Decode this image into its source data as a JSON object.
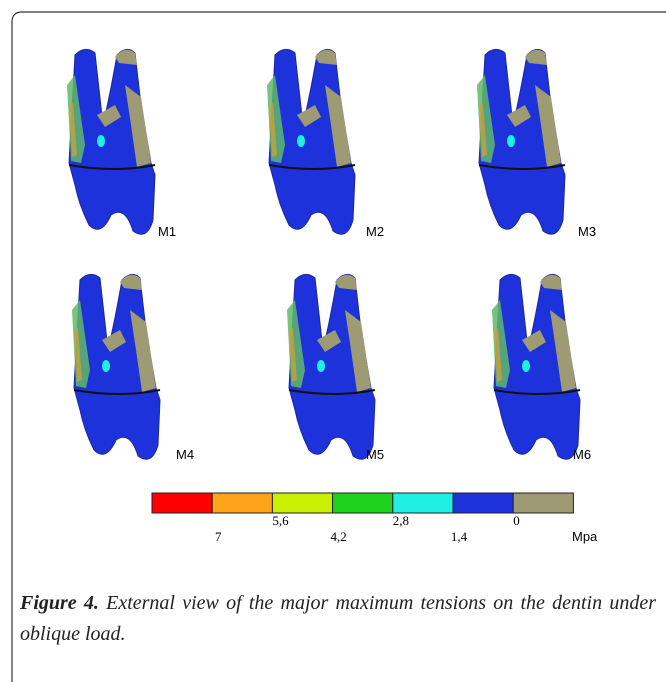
{
  "figure": {
    "panels": [
      "M1",
      "M2",
      "M3",
      "M4",
      "M5",
      "M6"
    ],
    "legend": {
      "colors": [
        "#ff0000",
        "#ffa31a",
        "#c8f000",
        "#1ed21e",
        "#1ef0e6",
        "#1e32dc",
        "#9e9a74"
      ],
      "labels": [
        "7",
        "5,6",
        "4,2",
        "2,8",
        "1,4",
        "0"
      ],
      "unit": "Mpa"
    },
    "caption": {
      "label": "Figure 4.",
      "text": "External view of the major maximum tensions on the dentin under oblique load."
    }
  }
}
